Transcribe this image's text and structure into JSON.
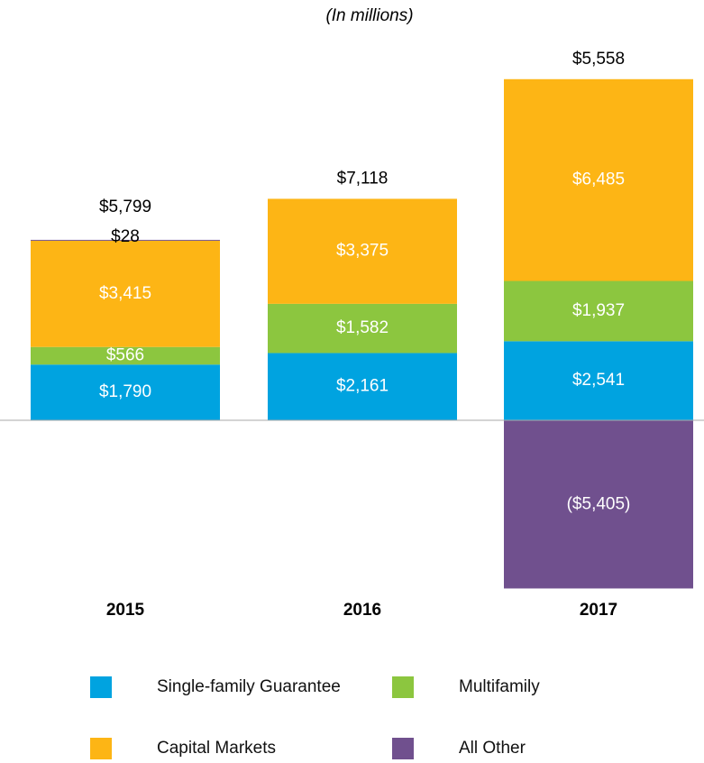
{
  "chart_data": {
    "type": "stacked_bar",
    "subtitle": "(In millions)",
    "categories": [
      "2015",
      "2016",
      "2017"
    ],
    "series": [
      {
        "name": "Single-family Guarantee",
        "color": "#00a3e0",
        "values": [
          1790,
          2161,
          2541
        ],
        "value_labels": [
          "$1,790",
          "$2,161",
          "$2,541"
        ]
      },
      {
        "name": "Multifamily",
        "color": "#8cc63f",
        "values": [
          566,
          1582,
          1937
        ],
        "value_labels": [
          "$566",
          "$1,582",
          "$1,937"
        ]
      },
      {
        "name": "Capital Markets",
        "color": "#fdb515",
        "values": [
          3415,
          3375,
          6485
        ],
        "value_labels": [
          "$3,415",
          "$3,375",
          "$6,485"
        ]
      },
      {
        "name": "All Other",
        "color": "#70508e",
        "values": [
          28,
          null,
          -5405
        ],
        "value_labels": [
          "$28",
          null,
          "($5,405)"
        ]
      }
    ],
    "totals": [
      5799,
      7118,
      5558
    ],
    "total_labels": [
      "$5,799",
      "$7,118",
      "$5,558"
    ]
  }
}
